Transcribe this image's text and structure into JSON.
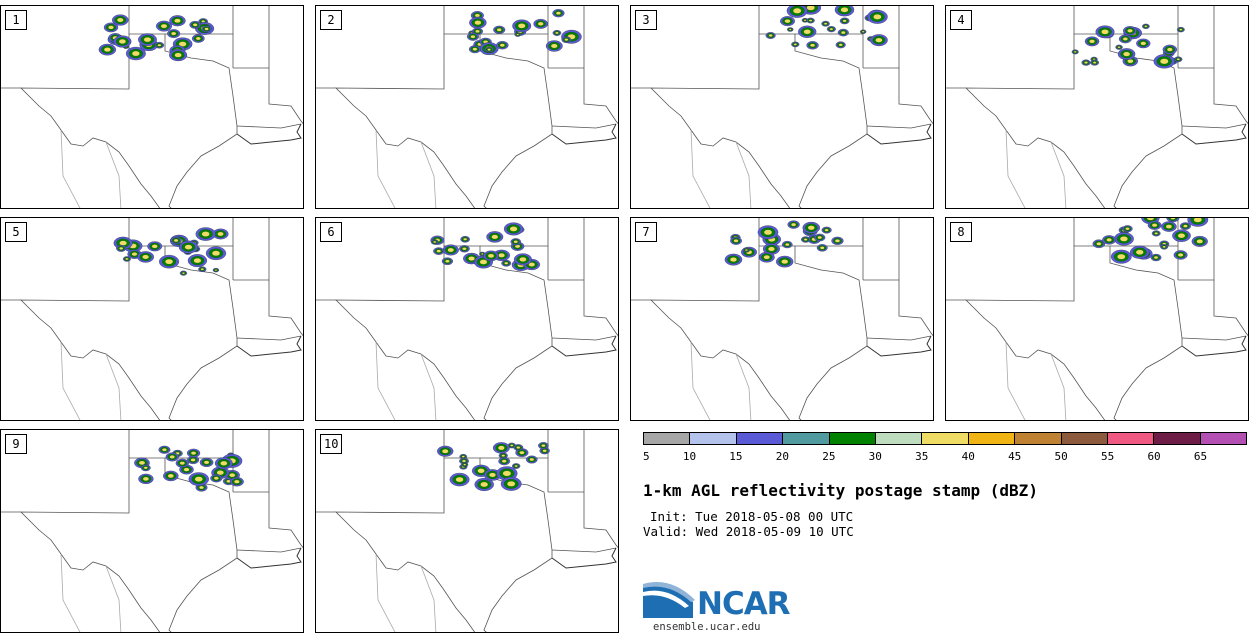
{
  "panels": [
    {
      "label": "1"
    },
    {
      "label": "2"
    },
    {
      "label": "3"
    },
    {
      "label": "4"
    },
    {
      "label": "5"
    },
    {
      "label": "6"
    },
    {
      "label": "7"
    },
    {
      "label": "8"
    },
    {
      "label": "9"
    },
    {
      "label": "10"
    }
  ],
  "colorbar": {
    "colors": [
      "#a6a6a6",
      "#b4c3eb",
      "#5a5ad7",
      "#509aa0",
      "#008200",
      "#bedcbe",
      "#eedc64",
      "#f0b414",
      "#be8232",
      "#8c5a3c",
      "#f05a82",
      "#6e1e46",
      "#b450b4"
    ],
    "tick_labels": [
      "5",
      "10",
      "15",
      "20",
      "25",
      "30",
      "35",
      "40",
      "45",
      "50",
      "55",
      "60",
      "65"
    ]
  },
  "title": "1-km AGL reflectivity postage stamp (dBZ)",
  "init": "Init: Tue 2018-05-08 00 UTC",
  "valid": "Valid: Wed 2018-05-09 10 UTC",
  "logo_text": "NCAR",
  "url": "ensemble.ucar.edu"
}
